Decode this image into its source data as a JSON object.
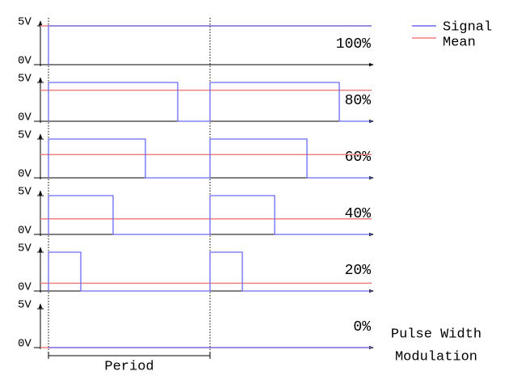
{
  "legend": {
    "signal": "Signal",
    "mean": "Mean"
  },
  "colors": {
    "signal": "#6a6af0",
    "mean": "#f08080"
  },
  "panels": [
    {
      "high": "5V",
      "low": "0V",
      "label": "100%",
      "duty": 100
    },
    {
      "high": "5V",
      "low": "0V",
      "label": "80%",
      "duty": 80
    },
    {
      "high": "5V",
      "low": "0V",
      "label": "60%",
      "duty": 60
    },
    {
      "high": "5V",
      "low": "0V",
      "label": "40%",
      "duty": 40
    },
    {
      "high": "5V",
      "low": "0V",
      "label": "20%",
      "duty": 20
    },
    {
      "high": "5V",
      "low": "0V",
      "label": "0%",
      "duty": 0
    }
  ],
  "period_label": "Period",
  "caption": [
    "Pulse Width",
    "Modulation"
  ]
}
